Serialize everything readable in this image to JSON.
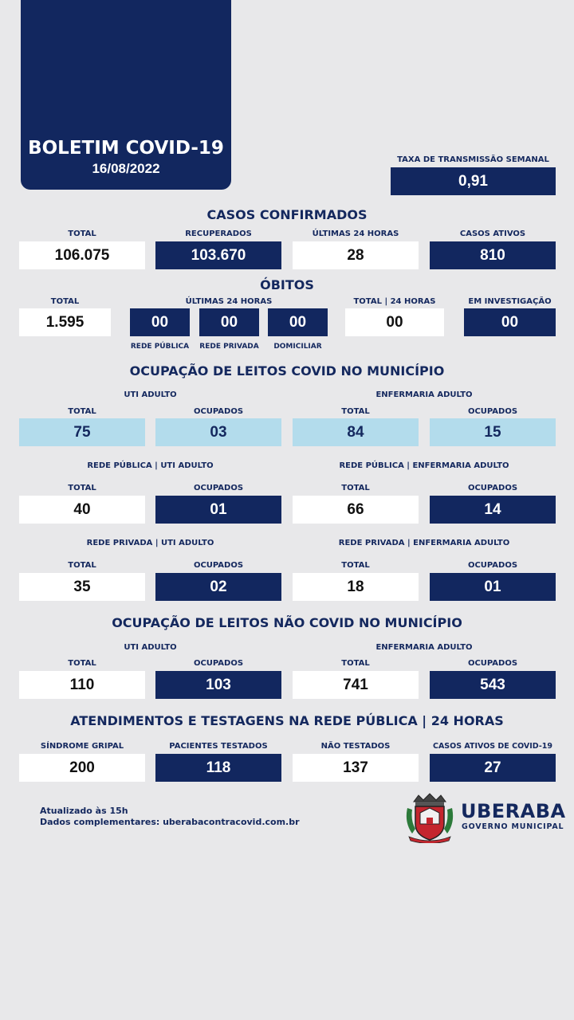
{
  "header": {
    "title": "BOLETIM COVID-19",
    "date": "16/08/2022"
  },
  "transmission": {
    "label": "TAXA DE TRANSMISSÃO SEMANAL",
    "value": "0,91"
  },
  "confirmed": {
    "title": "CASOS CONFIRMADOS",
    "items": [
      {
        "label": "TOTAL",
        "value": "106.075"
      },
      {
        "label": "RECUPERADOS",
        "value": "103.670"
      },
      {
        "label": "ÚLTIMAS 24 HORAS",
        "value": "28"
      },
      {
        "label": "CASOS ATIVOS",
        "value": "810"
      }
    ]
  },
  "deaths": {
    "title": "ÓBITOS",
    "total_label": "TOTAL",
    "total_value": "1.595",
    "last24_label": "ÚLTIMAS 24 HORAS",
    "breakdown": [
      {
        "label": "REDE PÚBLICA",
        "value": "00"
      },
      {
        "label": "REDE PRIVADA",
        "value": "00"
      },
      {
        "label": "DOMICILIAR",
        "value": "00"
      }
    ],
    "total24_label": "TOTAL | 24 HORAS",
    "total24_value": "00",
    "investigation_label": "EM INVESTIGAÇÃO",
    "investigation_value": "00"
  },
  "covid_beds": {
    "title": "OCUPAÇÃO DE LEITOS COVID NO MUNICÍPIO",
    "groups": [
      {
        "left_title": "UTI ADULTO",
        "right_title": "ENFERMARIA ADULTO",
        "values": [
          "75",
          "03",
          "84",
          "15"
        ]
      },
      {
        "left_title": "REDE PÚBLICA | UTI ADULTO",
        "right_title": "REDE PÚBLICA | ENFERMARIA ADULTO",
        "values": [
          "40",
          "01",
          "66",
          "14"
        ]
      },
      {
        "left_title": "REDE PRIVADA | UTI ADULTO",
        "right_title": "REDE PRIVADA | ENFERMARIA ADULTO",
        "values": [
          "35",
          "02",
          "18",
          "01"
        ]
      }
    ],
    "total_label": "TOTAL",
    "occupied_label": "OCUPADOS"
  },
  "noncovid_beds": {
    "title": "OCUPAÇÃO DE LEITOS NÃO COVID NO MUNICÍPIO",
    "left_title": "UTI ADULTO",
    "right_title": "ENFERMARIA ADULTO",
    "total_label": "TOTAL",
    "occupied_label": "OCUPADOS",
    "values": [
      "110",
      "103",
      "741",
      "543"
    ]
  },
  "care": {
    "title": "ATENDIMENTOS E TESTAGENS NA REDE PÚBLICA | 24 HORAS",
    "items": [
      {
        "label": "SÍNDROME GRIPAL",
        "value": "200"
      },
      {
        "label": "PACIENTES TESTADOS",
        "value": "118"
      },
      {
        "label": "NÃO TESTADOS",
        "value": "137"
      },
      {
        "label": "CASOS ATIVOS DE COVID-19",
        "value": "27"
      }
    ]
  },
  "footer": {
    "updated": "Atualizado às 15h",
    "more": "Dados complementares: uberabacontracovid.com.br"
  },
  "brand": {
    "name": "UBERABA",
    "subtitle": "GOVERNO MUNICIPAL"
  },
  "colors": {
    "navy": "#12275f",
    "light_blue": "#b3dcec",
    "background": "#e8e8ea"
  }
}
